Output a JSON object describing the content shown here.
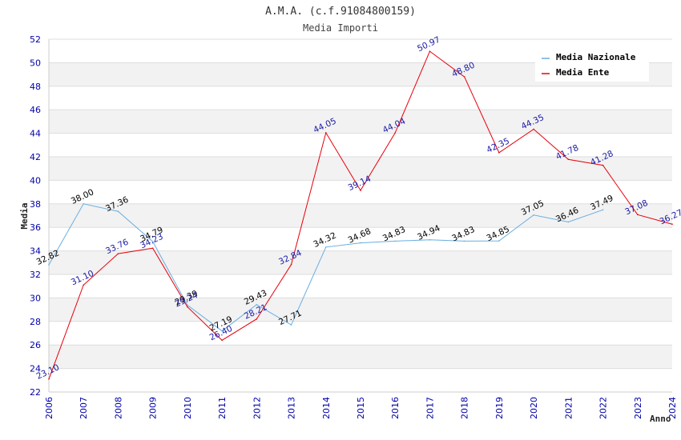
{
  "chart_data": {
    "type": "line",
    "title": "A.M.A. (c.f.91084800159)",
    "subtitle": "Media Importi",
    "xlabel": "Anno",
    "ylabel": "Media",
    "categories": [
      "2006",
      "2007",
      "2008",
      "2009",
      "2010",
      "2011",
      "2012",
      "2013",
      "2014",
      "2015",
      "2016",
      "2017",
      "2018",
      "2019",
      "2020",
      "2021",
      "2022",
      "2023",
      "2024"
    ],
    "ylim": [
      22,
      52
    ],
    "yticks": [
      22,
      24,
      26,
      28,
      30,
      32,
      34,
      36,
      38,
      40,
      42,
      44,
      46,
      48,
      50,
      52
    ],
    "grid": true,
    "legend_position": "top-right",
    "series": [
      {
        "name": "Media Nazionale",
        "color": "#6aaee0",
        "label_color": "#000000",
        "values": [
          32.82,
          38.0,
          37.36,
          34.79,
          29.39,
          27.19,
          29.43,
          27.71,
          34.32,
          34.68,
          34.83,
          34.94,
          34.83,
          34.85,
          37.05,
          36.46,
          37.49,
          null,
          null
        ],
        "labels": [
          "32.82",
          "38.00",
          "37.36",
          "34.79",
          "29.39",
          "27.19",
          "29.43",
          "27.71",
          "34.32",
          "34.68",
          "34.83",
          "34.94",
          "34.83",
          "34.85",
          "37.05",
          "36.46",
          "37.49",
          null,
          null
        ]
      },
      {
        "name": "Media Ente",
        "color": "#e8000b",
        "label_color": "#1a1aa6",
        "values": [
          23.1,
          31.1,
          33.76,
          34.23,
          29.24,
          26.4,
          28.21,
          32.84,
          44.05,
          39.14,
          44.04,
          50.97,
          48.8,
          42.35,
          44.35,
          41.78,
          41.28,
          37.08,
          36.27
        ],
        "labels": [
          "23.10",
          "31.10",
          "33.76",
          "34.23",
          "29.24",
          "26.40",
          "28.21",
          "32.84",
          "44.05",
          "39.14",
          "44.04",
          "50.97",
          "48.80",
          "42.35",
          "44.35",
          "41.78",
          "41.28",
          "37.08",
          "36.27"
        ]
      }
    ],
    "colors": {
      "axis_tick_text": "#0000aa",
      "band": "#f2f2f2",
      "gridline": "#dddddd"
    }
  }
}
